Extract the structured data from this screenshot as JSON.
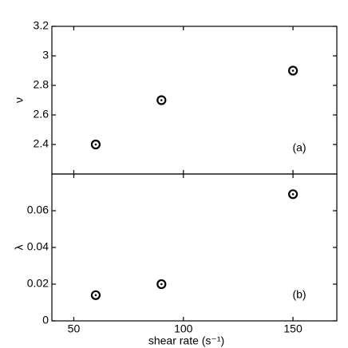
{
  "chart_data": [
    {
      "type": "scatter",
      "ylabel": "ν",
      "annotation": "(a)",
      "color": "#000000",
      "x": [
        60,
        90,
        150
      ],
      "values": [
        2.4,
        2.7,
        2.9
      ],
      "xlim": [
        40,
        170
      ],
      "ylim": [
        2.2,
        3.2
      ],
      "xticks": [
        50,
        100,
        150
      ],
      "yticks": [
        2.4,
        2.6,
        2.8,
        3,
        3.2
      ]
    },
    {
      "type": "scatter",
      "ylabel": "λ",
      "annotation": "(b)",
      "xlabel": "shear rate (s⁻¹)",
      "color": "#000000",
      "x": [
        60,
        90,
        150
      ],
      "values": [
        0.014,
        0.02,
        0.069
      ],
      "xlim": [
        40,
        170
      ],
      "ylim": [
        0,
        0.08
      ],
      "xticks": [
        50,
        100,
        150
      ],
      "yticks": [
        0,
        0.02,
        0.04,
        0.06
      ]
    }
  ]
}
